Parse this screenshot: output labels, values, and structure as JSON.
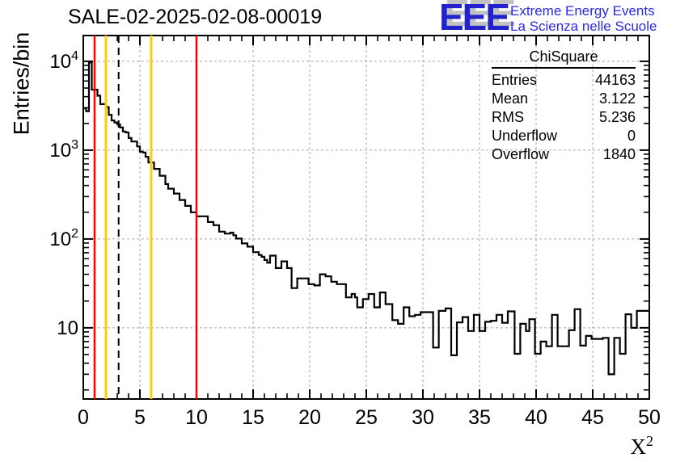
{
  "title": "SALE-02-2025-02-08-00019",
  "logo": {
    "acronym": "EEE",
    "line1": "Extreme Energy Events",
    "line2": "La Scienza nelle Scuole",
    "color": "#2222cc",
    "shadow_color": "#c2c2c2"
  },
  "stats": {
    "title": "ChiSquare",
    "rows": [
      {
        "label": "Entries",
        "value": "44163"
      },
      {
        "label": "Mean",
        "value": "3.122"
      },
      {
        "label": "RMS",
        "value": "5.236"
      },
      {
        "label": "Underflow",
        "value": "0"
      },
      {
        "label": "Overflow",
        "value": "1840"
      }
    ]
  },
  "chart_data": {
    "type": "line",
    "subtype": "step-histogram",
    "title": "SALE-02-2025-02-08-00019",
    "xlabel": "X^2",
    "ylabel": "Entries/bin",
    "xlim": [
      0,
      50
    ],
    "ylim": [
      1.58,
      19500
    ],
    "yscale": "log",
    "grid": true,
    "grid_color": "#a6a6a6",
    "line_color": "#000000",
    "x_major_ticks": [
      {
        "value": 0,
        "label": "0"
      },
      {
        "value": 5,
        "label": "5"
      },
      {
        "value": 10,
        "label": "10"
      },
      {
        "value": 15,
        "label": "15"
      },
      {
        "value": 20,
        "label": "20"
      },
      {
        "value": 25,
        "label": "25"
      },
      {
        "value": 30,
        "label": "30"
      },
      {
        "value": 35,
        "label": "35"
      },
      {
        "value": 40,
        "label": "40"
      },
      {
        "value": 45,
        "label": "45"
      },
      {
        "value": 50,
        "label": "50"
      }
    ],
    "y_major_ticks": [
      {
        "value": 10,
        "base": "10",
        "exp": ""
      },
      {
        "value": 100,
        "base": "10",
        "exp": "2"
      },
      {
        "value": 1000,
        "base": "10",
        "exp": "3"
      },
      {
        "value": 10000,
        "base": "10",
        "exp": "4"
      }
    ],
    "marker_lines": [
      {
        "x": 1,
        "color": "#ff0000",
        "dash": "",
        "width": 2.5
      },
      {
        "x": 2,
        "color": "#ffcc00",
        "dash": "",
        "width": 3
      },
      {
        "x": 3.122,
        "color": "#000000",
        "dash": "9 6",
        "width": 2
      },
      {
        "x": 6,
        "color": "#ffcc00",
        "dash": "",
        "width": 3
      },
      {
        "x": 10,
        "color": "#ff0000",
        "dash": "",
        "width": 2.5
      }
    ],
    "bins": [
      [
        0,
        0.25,
        2950
      ],
      [
        0.25,
        0.5,
        2750
      ],
      [
        0.5,
        0.75,
        9700
      ],
      [
        0.75,
        1.25,
        4800
      ],
      [
        1.25,
        1.5,
        4100
      ],
      [
        1.5,
        2,
        3300
      ],
      [
        2,
        2.25,
        3050
      ],
      [
        2.25,
        2.5,
        2500
      ],
      [
        2.5,
        2.75,
        2160
      ],
      [
        2.75,
        3,
        2050
      ],
      [
        3,
        3.25,
        1950
      ],
      [
        3.25,
        3.5,
        1800
      ],
      [
        3.5,
        3.75,
        1620
      ],
      [
        3.75,
        4,
        1580
      ],
      [
        4,
        4.25,
        1370
      ],
      [
        4.25,
        4.75,
        1250
      ],
      [
        4.75,
        5,
        1100
      ],
      [
        5,
        5.25,
        960
      ],
      [
        5.25,
        5.5,
        940
      ],
      [
        5.5,
        5.75,
        840
      ],
      [
        5.75,
        6.25,
        725
      ],
      [
        6.25,
        6.75,
        615
      ],
      [
        6.75,
        7.25,
        515
      ],
      [
        7.25,
        7.5,
        415
      ],
      [
        7.5,
        8,
        368
      ],
      [
        8,
        8.5,
        325
      ],
      [
        8.5,
        9,
        275
      ],
      [
        9,
        9.5,
        236
      ],
      [
        9.5,
        10,
        200
      ],
      [
        10,
        11,
        180
      ],
      [
        11,
        11.5,
        155
      ],
      [
        11.5,
        12,
        143
      ],
      [
        12,
        12.5,
        121
      ],
      [
        12.5,
        13,
        115
      ],
      [
        13,
        13.25,
        118
      ],
      [
        13.25,
        13.5,
        110
      ],
      [
        13.5,
        14,
        101
      ],
      [
        14,
        14.5,
        89
      ],
      [
        14.5,
        15,
        82
      ],
      [
        15,
        15.5,
        71
      ],
      [
        15.5,
        15.75,
        66
      ],
      [
        15.75,
        16,
        63
      ],
      [
        16,
        16.25,
        58
      ],
      [
        16.25,
        16.5,
        54
      ],
      [
        16.5,
        17,
        65
      ],
      [
        17,
        17.5,
        47
      ],
      [
        17.5,
        18,
        56
      ],
      [
        18,
        18.4,
        47
      ],
      [
        18.4,
        18.9,
        28
      ],
      [
        18.9,
        19.9,
        36
      ],
      [
        19.9,
        20.4,
        31
      ],
      [
        20.4,
        20.9,
        30
      ],
      [
        20.9,
        21.4,
        40
      ],
      [
        21.4,
        21.9,
        38
      ],
      [
        21.9,
        22.4,
        33
      ],
      [
        22.4,
        23.2,
        31
      ],
      [
        23.2,
        23.7,
        22
      ],
      [
        23.7,
        24,
        24
      ],
      [
        24,
        24.2,
        22
      ],
      [
        24.2,
        24.7,
        17
      ],
      [
        24.7,
        25.2,
        21
      ],
      [
        25.2,
        25.7,
        24
      ],
      [
        25.7,
        26.2,
        17
      ],
      [
        26.2,
        26.7,
        25
      ],
      [
        26.7,
        27.3,
        18.5
      ],
      [
        27.3,
        27.8,
        12.2
      ],
      [
        27.8,
        28.3,
        11.1
      ],
      [
        28.3,
        28.8,
        17
      ],
      [
        28.8,
        29.3,
        13.5
      ],
      [
        29.3,
        29.8,
        14
      ],
      [
        29.8,
        30.9,
        15
      ],
      [
        30.9,
        31.4,
        6
      ],
      [
        31.4,
        32,
        15.5
      ],
      [
        32,
        32.5,
        16.5
      ],
      [
        32.5,
        33,
        4.9
      ],
      [
        33,
        33.5,
        11.5
      ],
      [
        33.5,
        34,
        13.2
      ],
      [
        34,
        34.5,
        9.2
      ],
      [
        34.5,
        35,
        14
      ],
      [
        35,
        35.5,
        9.2
      ],
      [
        35.5,
        36,
        11.7
      ],
      [
        36,
        36.5,
        12
      ],
      [
        36.5,
        37,
        14
      ],
      [
        37,
        37.5,
        11.4
      ],
      [
        37.5,
        38.1,
        15.3
      ],
      [
        38.1,
        38.6,
        5.1
      ],
      [
        38.6,
        39.1,
        11.1
      ],
      [
        39.1,
        39.4,
        9.2
      ],
      [
        39.4,
        39.9,
        12.5
      ],
      [
        39.9,
        40.4,
        5.1
      ],
      [
        40.4,
        40.9,
        7
      ],
      [
        40.9,
        41.4,
        6.2
      ],
      [
        41.4,
        41.9,
        14
      ],
      [
        41.9,
        42.9,
        6.2
      ],
      [
        42.9,
        43.4,
        9.4
      ],
      [
        43.4,
        43.9,
        16.2
      ],
      [
        43.9,
        44.4,
        6.3
      ],
      [
        44.4,
        44.9,
        8.1
      ],
      [
        44.9,
        45.9,
        7.5
      ],
      [
        45.9,
        46.4,
        7.7
      ],
      [
        46.4,
        46.9,
        3
      ],
      [
        46.9,
        47.4,
        7.7
      ],
      [
        47.4,
        47.9,
        5.1
      ],
      [
        47.9,
        48.4,
        14.2
      ],
      [
        48.4,
        48.9,
        10
      ],
      [
        48.9,
        50,
        15.5
      ]
    ]
  }
}
